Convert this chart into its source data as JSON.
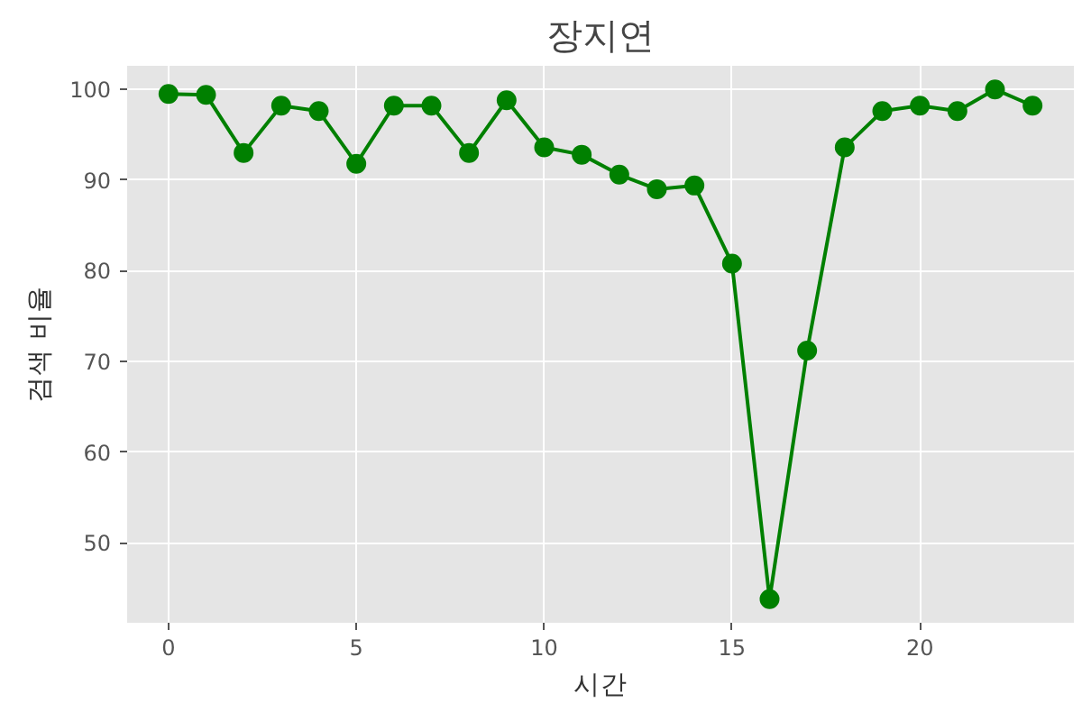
{
  "chart_data": {
    "type": "line",
    "title": "장지연",
    "xlabel": "시간",
    "ylabel": "검색 비율",
    "x": [
      0,
      1,
      2,
      3,
      4,
      5,
      6,
      7,
      8,
      9,
      10,
      11,
      12,
      13,
      14,
      15,
      16,
      17,
      18,
      19,
      20,
      21,
      22,
      23
    ],
    "series": [
      {
        "color": "#008000",
        "values": [
          99.5,
          99.4,
          93.0,
          98.2,
          97.6,
          91.8,
          98.2,
          98.2,
          93.0,
          98.8,
          93.6,
          92.8,
          90.6,
          89.0,
          89.4,
          80.8,
          43.8,
          71.2,
          93.6,
          97.6,
          98.2,
          97.6,
          100,
          98.2
        ]
      }
    ],
    "xlim": [
      -1.1,
      24.1
    ],
    "ylim": [
      41.2,
      102.6
    ],
    "xticks": [
      0,
      5,
      10,
      15,
      20
    ],
    "yticks": [
      50,
      60,
      70,
      80,
      90,
      100
    ],
    "grid": true,
    "marker": "circle",
    "line_style": "solid"
  }
}
